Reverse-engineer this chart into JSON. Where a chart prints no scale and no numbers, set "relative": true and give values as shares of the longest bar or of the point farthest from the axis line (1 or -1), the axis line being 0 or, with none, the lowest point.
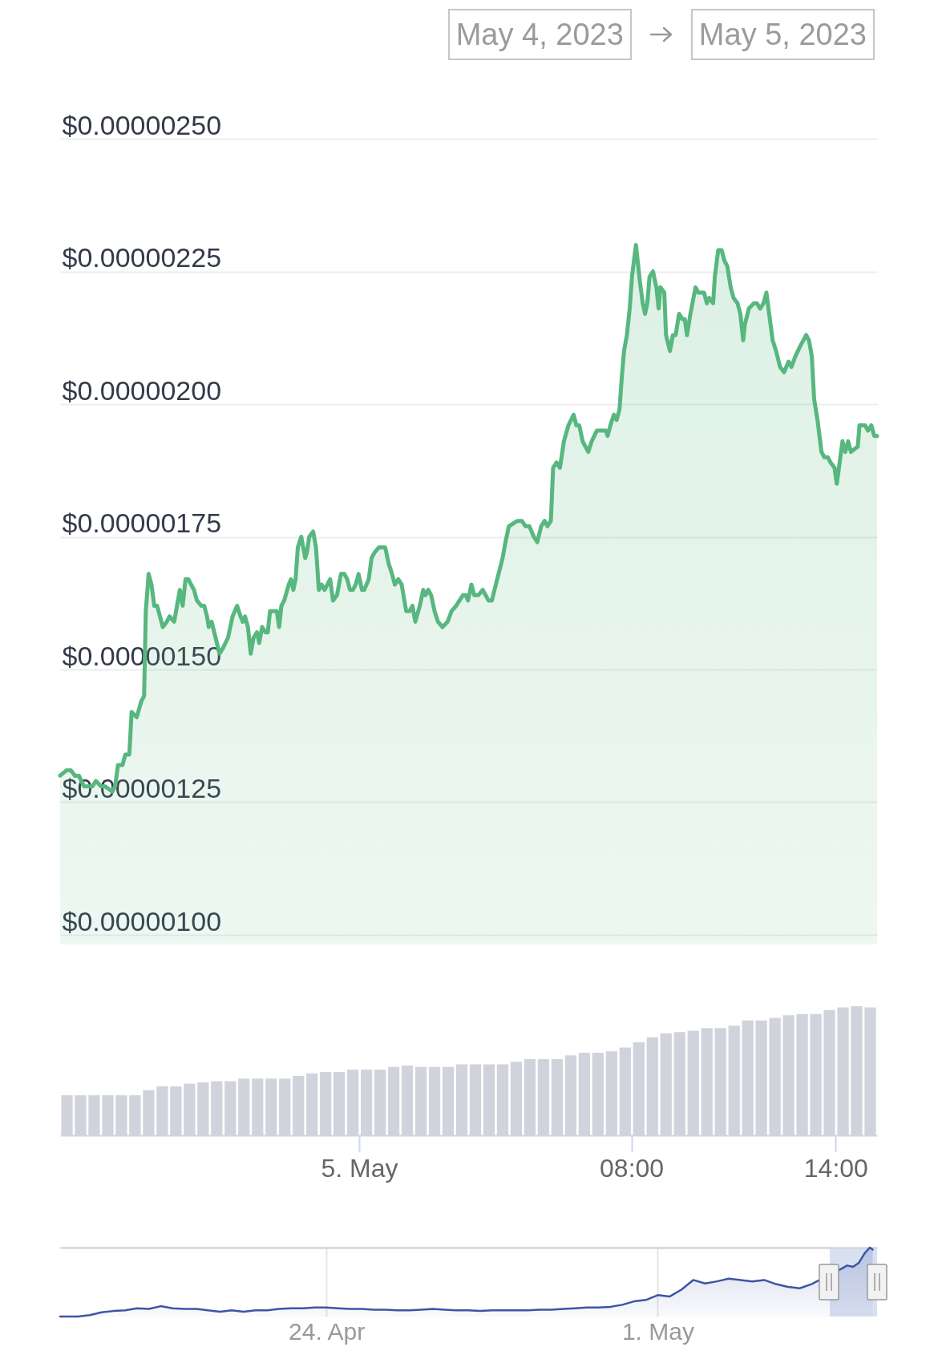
{
  "chart_data": [
    {
      "type": "area",
      "annotations": [
        "May 4, 2023",
        "May 5, 2023"
      ],
      "color": "#57b77f",
      "xlim": [
        "2023-05-04T15:13",
        "2023-05-05T15:13"
      ],
      "ylim": [
        1e-06,
        2.5e-06
      ],
      "yticks": [
        {
          "value": 1e-06,
          "label": "$0.00000100"
        },
        {
          "value": 1.25e-06,
          "label": "$0.00000125"
        },
        {
          "value": 1.5e-06,
          "label": "$0.00000150"
        },
        {
          "value": 1.75e-06,
          "label": "$0.00000175"
        },
        {
          "value": 2e-06,
          "label": "$0.00000200"
        },
        {
          "value": 2.25e-06,
          "label": "$0.00000225"
        },
        {
          "value": 2.5e-06,
          "label": "$0.00000250"
        }
      ],
      "grid": "y",
      "tick_labels": "y",
      "x": [
        "2023-05-04T15:13",
        "2023-05-04T15:24",
        "2023-05-04T15:32",
        "2023-05-04T15:39",
        "2023-05-04T15:46",
        "2023-05-04T15:55",
        "2023-05-04T16:02",
        "2023-05-04T16:10",
        "2023-05-04T16:16",
        "2023-05-04T16:25",
        "2023-05-04T16:32",
        "2023-05-04T16:45",
        "2023-05-04T16:50",
        "2023-05-04T16:55",
        "2023-05-04T17:03",
        "2023-05-04T17:08",
        "2023-05-04T17:15",
        "2023-05-04T17:19",
        "2023-05-04T17:28",
        "2023-05-04T17:36",
        "2023-05-04T17:41",
        "2023-05-04T17:44",
        "2023-05-04T17:49",
        "2023-05-04T17:54",
        "2023-05-04T17:59",
        "2023-05-04T18:04",
        "2023-05-04T18:14",
        "2023-05-04T18:21",
        "2023-05-04T18:26",
        "2023-05-04T18:34",
        "2023-05-04T18:44",
        "2023-05-04T18:49",
        "2023-05-04T18:54",
        "2023-05-04T18:59",
        "2023-05-04T19:04",
        "2023-05-04T19:09",
        "2023-05-04T19:14",
        "2023-05-04T19:22",
        "2023-05-04T19:27",
        "2023-05-04T19:32",
        "2023-05-04T19:35",
        "2023-05-04T19:40",
        "2023-05-04T19:47",
        "2023-05-04T19:54",
        "2023-05-04T20:00",
        "2023-05-04T20:09",
        "2023-05-04T20:17",
        "2023-05-04T20:25",
        "2023-05-04T20:31",
        "2023-05-04T20:35",
        "2023-05-04T20:39",
        "2023-05-04T20:44",
        "2023-05-04T20:49",
        "2023-05-04T20:54",
        "2023-05-04T21:00",
        "2023-05-04T21:04",
        "2023-05-04T21:09",
        "2023-05-04T21:15",
        "2023-05-04T21:19",
        "2023-05-04T21:23",
        "2023-05-04T21:32",
        "2023-05-04T21:35",
        "2023-05-04T21:39",
        "2023-05-04T21:43",
        "2023-05-04T21:48",
        "2023-05-04T21:56",
        "2023-05-04T22:00",
        "2023-05-04T22:04",
        "2023-05-04T22:08",
        "2023-05-04T22:12",
        "2023-05-04T22:18",
        "2023-05-04T22:25",
        "2023-05-04T22:28",
        "2023-05-04T22:32",
        "2023-05-04T22:39",
        "2023-05-04T22:44",
        "2023-05-04T22:49",
        "2023-05-04T22:54",
        "2023-05-04T22:59",
        "2023-05-04T23:04",
        "2023-05-04T23:09",
        "2023-05-04T23:14",
        "2023-05-04T23:21",
        "2023-05-04T23:28",
        "2023-05-04T23:34",
        "2023-05-04T23:39",
        "2023-05-04T23:44",
        "2023-05-04T23:49",
        "2023-05-04T23:54",
        "2023-05-04T23:59",
        "2023-05-05T00:05",
        "2023-05-05T00:09",
        "2023-05-05T00:17",
        "2023-05-05T00:22",
        "2023-05-05T00:27",
        "2023-05-05T00:35",
        "2023-05-05T00:42",
        "2023-05-05T00:46",
        "2023-05-05T00:52",
        "2023-05-05T00:58",
        "2023-05-05T01:03",
        "2023-05-05T01:09",
        "2023-05-05T01:15",
        "2023-05-05T01:23",
        "2023-05-05T01:29",
        "2023-05-05T01:34",
        "2023-05-05T01:39",
        "2023-05-05T01:47",
        "2023-05-05T01:53",
        "2023-05-05T01:57",
        "2023-05-05T02:02",
        "2023-05-05T02:07",
        "2023-05-05T02:13",
        "2023-05-05T02:19",
        "2023-05-05T02:27",
        "2023-05-05T02:36",
        "2023-05-05T02:43",
        "2023-05-05T02:51",
        "2023-05-05T02:57",
        "2023-05-05T03:03",
        "2023-05-05T03:08",
        "2023-05-05T03:12",
        "2023-05-05T03:18",
        "2023-05-05T03:23",
        "2023-05-05T03:30",
        "2023-05-05T03:38",
        "2023-05-05T03:48",
        "2023-05-05T03:54",
        "2023-05-05T04:01",
        "2023-05-05T04:13",
        "2023-05-05T04:18",
        "2023-05-05T04:24",
        "2023-05-05T04:39",
        "2023-05-05T04:47",
        "2023-05-05T04:53",
        "2023-05-05T05:00",
        "2023-05-05T05:08",
        "2023-05-05T05:14",
        "2023-05-05T05:21",
        "2023-05-05T05:27",
        "2023-05-05T05:32",
        "2023-05-05T05:38",
        "2023-05-05T05:42",
        "2023-05-05T05:48",
        "2023-05-05T05:54",
        "2023-05-05T06:01",
        "2023-05-05T06:09",
        "2023-05-05T06:18",
        "2023-05-05T06:23",
        "2023-05-05T06:28",
        "2023-05-05T06:34",
        "2023-05-05T06:39",
        "2023-05-05T06:44",
        "2023-05-05T06:50",
        "2023-05-05T06:59",
        "2023-05-05T07:04",
        "2023-05-05T07:11",
        "2023-05-05T07:15",
        "2023-05-05T07:18",
        "2023-05-05T07:23",
        "2023-05-05T07:29",
        "2023-05-05T07:34",
        "2023-05-05T07:39",
        "2023-05-05T07:43",
        "2023-05-05T07:47",
        "2023-05-05T07:52",
        "2023-05-05T07:57",
        "2023-05-05T08:01",
        "2023-05-05T08:08",
        "2023-05-05T08:15",
        "2023-05-05T08:20",
        "2023-05-05T08:24",
        "2023-05-05T08:28",
        "2023-05-05T08:32",
        "2023-05-05T08:38",
        "2023-05-05T08:44",
        "2023-05-05T08:48",
        "2023-05-05T08:51",
        "2023-05-05T08:58",
        "2023-05-05T09:01",
        "2023-05-05T09:08",
        "2023-05-05T09:13",
        "2023-05-05T09:18",
        "2023-05-05T09:24",
        "2023-05-05T09:30",
        "2023-05-05T09:34",
        "2023-05-05T09:38",
        "2023-05-05T09:44",
        "2023-05-05T09:53",
        "2023-05-05T09:58",
        "2023-05-05T10:03",
        "2023-05-05T10:08",
        "2023-05-05T10:13",
        "2023-05-05T10:17",
        "2023-05-05T10:24",
        "2023-05-05T10:27",
        "2023-05-05T10:33",
        "2023-05-05T10:39",
        "2023-05-05T10:44",
        "2023-05-05T10:49",
        "2023-05-05T10:55",
        "2023-05-05T11:00",
        "2023-05-05T11:07",
        "2023-05-05T11:12",
        "2023-05-05T11:17",
        "2023-05-05T11:20",
        "2023-05-05T11:27",
        "2023-05-05T11:36",
        "2023-05-05T11:41",
        "2023-05-05T11:47",
        "2023-05-05T11:53",
        "2023-05-05T11:58",
        "2023-05-05T12:04",
        "2023-05-05T12:09",
        "2023-05-05T12:15",
        "2023-05-05T12:22",
        "2023-05-05T12:29",
        "2023-05-05T12:37",
        "2023-05-05T12:42",
        "2023-05-05T12:49",
        "2023-05-05T12:58",
        "2023-05-05T13:03",
        "2023-05-05T13:08",
        "2023-05-05T13:13",
        "2023-05-05T13:18",
        "2023-05-05T13:22",
        "2023-05-05T13:28",
        "2023-05-05T13:35",
        "2023-05-05T13:40",
        "2023-05-05T13:46",
        "2023-05-05T13:51",
        "2023-05-05T13:58",
        "2023-05-05T14:02",
        "2023-05-05T14:07",
        "2023-05-05T14:12",
        "2023-05-05T14:17",
        "2023-05-05T14:22",
        "2023-05-05T14:27",
        "2023-05-05T14:39",
        "2023-05-05T14:42",
        "2023-05-05T14:48",
        "2023-05-05T14:52",
        "2023-05-05T14:57",
        "2023-05-05T15:03",
        "2023-05-05T15:08",
        "2023-05-05T15:13"
      ],
      "values": [
        1.3e-06,
        1.31e-06,
        1.31e-06,
        1.3e-06,
        1.3e-06,
        1.28e-06,
        1.28e-06,
        1.28e-06,
        1.29e-06,
        1.28e-06,
        1.28e-06,
        1.27e-06,
        1.28e-06,
        1.32e-06,
        1.32e-06,
        1.34e-06,
        1.34e-06,
        1.42e-06,
        1.41e-06,
        1.44e-06,
        1.45e-06,
        1.61e-06,
        1.68e-06,
        1.66e-06,
        1.62e-06,
        1.62e-06,
        1.58e-06,
        1.59e-06,
        1.6e-06,
        1.59e-06,
        1.65e-06,
        1.62e-06,
        1.67e-06,
        1.67e-06,
        1.66e-06,
        1.65e-06,
        1.63e-06,
        1.62e-06,
        1.62e-06,
        1.6e-06,
        1.58e-06,
        1.59e-06,
        1.56e-06,
        1.53e-06,
        1.54e-06,
        1.56e-06,
        1.6e-06,
        1.62e-06,
        1.6e-06,
        1.59e-06,
        1.6e-06,
        1.58e-06,
        1.53e-06,
        1.56e-06,
        1.57e-06,
        1.55e-06,
        1.58e-06,
        1.57e-06,
        1.57e-06,
        1.61e-06,
        1.61e-06,
        1.61e-06,
        1.58e-06,
        1.62e-06,
        1.63e-06,
        1.66e-06,
        1.67e-06,
        1.65e-06,
        1.67e-06,
        1.73e-06,
        1.75e-06,
        1.71e-06,
        1.72e-06,
        1.75e-06,
        1.76e-06,
        1.73e-06,
        1.65e-06,
        1.66e-06,
        1.65e-06,
        1.66e-06,
        1.67e-06,
        1.63e-06,
        1.64e-06,
        1.68e-06,
        1.68e-06,
        1.67e-06,
        1.65e-06,
        1.65e-06,
        1.66e-06,
        1.68e-06,
        1.65e-06,
        1.65e-06,
        1.67e-06,
        1.71e-06,
        1.72e-06,
        1.73e-06,
        1.73e-06,
        1.73e-06,
        1.7e-06,
        1.68e-06,
        1.66e-06,
        1.67e-06,
        1.66e-06,
        1.61e-06,
        1.61e-06,
        1.62e-06,
        1.59e-06,
        1.62e-06,
        1.65e-06,
        1.64e-06,
        1.65e-06,
        1.64e-06,
        1.61e-06,
        1.59e-06,
        1.58e-06,
        1.59e-06,
        1.61e-06,
        1.62e-06,
        1.63e-06,
        1.64e-06,
        1.64e-06,
        1.63e-06,
        1.66e-06,
        1.64e-06,
        1.64e-06,
        1.65e-06,
        1.63e-06,
        1.63e-06,
        1.66e-06,
        1.71e-06,
        1.74e-06,
        1.77e-06,
        1.78e-06,
        1.78e-06,
        1.77e-06,
        1.77e-06,
        1.75e-06,
        1.74e-06,
        1.77e-06,
        1.78e-06,
        1.77e-06,
        1.78e-06,
        1.88e-06,
        1.89e-06,
        1.88e-06,
        1.93e-06,
        1.96e-06,
        1.98e-06,
        1.96e-06,
        1.96e-06,
        1.93e-06,
        1.92e-06,
        1.91e-06,
        1.93e-06,
        1.95e-06,
        1.95e-06,
        1.95e-06,
        1.95e-06,
        1.94e-06,
        1.96e-06,
        1.98e-06,
        1.97e-06,
        1.99e-06,
        2.05e-06,
        2.1e-06,
        2.13e-06,
        2.18e-06,
        2.24e-06,
        2.3e-06,
        2.23e-06,
        2.19e-06,
        2.17e-06,
        2.19e-06,
        2.24e-06,
        2.25e-06,
        2.22e-06,
        2.18e-06,
        2.22e-06,
        2.21e-06,
        2.13e-06,
        2.1e-06,
        2.13e-06,
        2.13e-06,
        2.17e-06,
        2.16e-06,
        2.16e-06,
        2.13e-06,
        2.17e-06,
        2.22e-06,
        2.21e-06,
        2.21e-06,
        2.21e-06,
        2.19e-06,
        2.2e-06,
        2.19e-06,
        2.24e-06,
        2.29e-06,
        2.29e-06,
        2.27e-06,
        2.26e-06,
        2.22e-06,
        2.2e-06,
        2.19e-06,
        2.17e-06,
        2.12e-06,
        2.15e-06,
        2.18e-06,
        2.19e-06,
        2.19e-06,
        2.18e-06,
        2.19e-06,
        2.21e-06,
        2.16e-06,
        2.12e-06,
        2.1e-06,
        2.07e-06,
        2.06e-06,
        2.08e-06,
        2.07e-06,
        2.09e-06,
        2.11e-06,
        2.12e-06,
        2.13e-06,
        2.12e-06,
        2.09e-06,
        2.01e-06,
        1.97e-06,
        1.91e-06,
        1.9e-06,
        1.9e-06,
        1.89e-06,
        1.88e-06,
        1.85e-06,
        1.89e-06,
        1.93e-06,
        1.91e-06,
        1.93e-06,
        1.91e-06,
        1.92e-06,
        1.96e-06,
        1.96e-06,
        1.96e-06,
        1.95e-06,
        1.96e-06,
        1.94e-06,
        1.94e-06
      ]
    },
    {
      "type": "bar",
      "relative": true,
      "color": "#d1d3dc",
      "xlim": [
        "2023-05-04T15:13",
        "2023-05-05T15:13"
      ],
      "xticks": [
        {
          "value": "2023-05-05T00:00",
          "label": "5. May"
        },
        {
          "value": "2023-05-05T08:00",
          "label": "08:00"
        },
        {
          "value": "2023-05-05T14:00",
          "label": "14:00"
        }
      ],
      "tick_labels": "x",
      "x": [
        "2023-05-04T15:25",
        "2023-05-04T15:49",
        "2023-05-04T16:13",
        "2023-05-04T16:37",
        "2023-05-04T17:01",
        "2023-05-04T17:25",
        "2023-05-04T17:49",
        "2023-05-04T18:13",
        "2023-05-04T18:37",
        "2023-05-04T19:01",
        "2023-05-04T19:25",
        "2023-05-04T19:49",
        "2023-05-04T20:13",
        "2023-05-04T20:37",
        "2023-05-04T21:01",
        "2023-05-04T21:25",
        "2023-05-04T21:49",
        "2023-05-04T22:13",
        "2023-05-04T22:37",
        "2023-05-04T23:01",
        "2023-05-04T23:25",
        "2023-05-04T23:49",
        "2023-05-05T00:13",
        "2023-05-05T00:37",
        "2023-05-05T01:01",
        "2023-05-05T01:25",
        "2023-05-05T01:49",
        "2023-05-05T02:13",
        "2023-05-05T02:37",
        "2023-05-05T03:01",
        "2023-05-05T03:25",
        "2023-05-05T03:49",
        "2023-05-05T04:13",
        "2023-05-05T04:37",
        "2023-05-05T05:01",
        "2023-05-05T05:25",
        "2023-05-05T05:49",
        "2023-05-05T06:13",
        "2023-05-05T06:37",
        "2023-05-05T07:01",
        "2023-05-05T07:25",
        "2023-05-05T07:49",
        "2023-05-05T08:13",
        "2023-05-05T08:37",
        "2023-05-05T09:01",
        "2023-05-05T09:25",
        "2023-05-05T09:49",
        "2023-05-05T10:13",
        "2023-05-05T10:37",
        "2023-05-05T11:01",
        "2023-05-05T11:25",
        "2023-05-05T11:49",
        "2023-05-05T12:13",
        "2023-05-05T12:37",
        "2023-05-05T13:01",
        "2023-05-05T13:25",
        "2023-05-05T13:49",
        "2023-05-05T14:13",
        "2023-05-05T14:37",
        "2023-05-05T15:01"
      ],
      "values": [
        0.31,
        0.31,
        0.31,
        0.31,
        0.31,
        0.31,
        0.35,
        0.38,
        0.38,
        0.4,
        0.41,
        0.42,
        0.42,
        0.44,
        0.44,
        0.44,
        0.44,
        0.46,
        0.48,
        0.49,
        0.49,
        0.51,
        0.51,
        0.51,
        0.53,
        0.54,
        0.53,
        0.53,
        0.53,
        0.55,
        0.55,
        0.55,
        0.55,
        0.57,
        0.59,
        0.59,
        0.59,
        0.62,
        0.64,
        0.64,
        0.65,
        0.68,
        0.72,
        0.76,
        0.79,
        0.8,
        0.81,
        0.83,
        0.83,
        0.85,
        0.89,
        0.89,
        0.91,
        0.93,
        0.94,
        0.94,
        0.97,
        0.99,
        1,
        0.99
      ]
    },
    {
      "type": "area",
      "relative": true,
      "color": "#3c55a5",
      "xlim": [
        "2023-04-18T09:00",
        "2023-05-05T15:13"
      ],
      "xticks": [
        {
          "value": "2023-04-24T00:00",
          "label": "24. Apr"
        },
        {
          "value": "2023-05-01T00:00",
          "label": "1. May"
        }
      ],
      "grid": "x",
      "tick_labels": "x",
      "bands": [
        {
          "axis": "x",
          "from": "2023-05-04T15:13",
          "to": "2023-05-05T15:13",
          "color": "#ccd6eb"
        }
      ],
      "x": [
        "2023-04-18T09:00",
        "2023-04-18T12:00",
        "2023-04-18T18:00",
        "2023-04-19T00:00",
        "2023-04-19T06:00",
        "2023-04-19T12:00",
        "2023-04-19T18:00",
        "2023-04-20T00:00",
        "2023-04-20T06:00",
        "2023-04-20T12:00",
        "2023-04-20T18:00",
        "2023-04-21T00:00",
        "2023-04-21T06:00",
        "2023-04-21T12:00",
        "2023-04-21T18:00",
        "2023-04-22T00:00",
        "2023-04-22T06:00",
        "2023-04-22T12:00",
        "2023-04-22T18:00",
        "2023-04-23T00:00",
        "2023-04-23T06:00",
        "2023-04-23T12:00",
        "2023-04-23T18:00",
        "2023-04-24T00:00",
        "2023-04-24T06:00",
        "2023-04-24T12:00",
        "2023-04-24T18:00",
        "2023-04-25T00:00",
        "2023-04-25T06:00",
        "2023-04-25T12:00",
        "2023-04-25T18:00",
        "2023-04-26T00:00",
        "2023-04-26T06:00",
        "2023-04-26T12:00",
        "2023-04-26T18:00",
        "2023-04-27T00:00",
        "2023-04-27T06:00",
        "2023-04-27T12:00",
        "2023-04-27T18:00",
        "2023-04-28T00:00",
        "2023-04-28T06:00",
        "2023-04-28T12:00",
        "2023-04-28T18:00",
        "2023-04-29T00:00",
        "2023-04-29T06:00",
        "2023-04-29T12:00",
        "2023-04-29T18:00",
        "2023-04-30T00:00",
        "2023-04-30T06:00",
        "2023-04-30T12:00",
        "2023-04-30T18:00",
        "2023-05-01T00:00",
        "2023-05-01T06:00",
        "2023-05-01T12:00",
        "2023-05-01T18:00",
        "2023-05-02T00:00",
        "2023-05-02T06:00",
        "2023-05-02T12:00",
        "2023-05-02T18:00",
        "2023-05-03T00:00",
        "2023-05-03T06:00",
        "2023-05-03T12:00",
        "2023-05-03T18:00",
        "2023-05-04T00:00",
        "2023-05-04T06:00",
        "2023-05-04T12:00",
        "2023-05-04T18:00",
        "2023-05-04T21:00",
        "2023-05-05T00:00",
        "2023-05-05T03:00",
        "2023-05-05T06:00",
        "2023-05-05T09:00",
        "2023-05-05T11:30",
        "2023-05-05T13:00"
      ],
      "values": [
        0,
        0,
        0,
        0.02,
        0.06,
        0.08,
        0.09,
        0.12,
        0.11,
        0.15,
        0.12,
        0.11,
        0.11,
        0.09,
        0.07,
        0.09,
        0.07,
        0.09,
        0.09,
        0.11,
        0.12,
        0.12,
        0.13,
        0.13,
        0.12,
        0.11,
        0.11,
        0.1,
        0.1,
        0.09,
        0.09,
        0.1,
        0.11,
        0.1,
        0.09,
        0.09,
        0.08,
        0.09,
        0.09,
        0.09,
        0.09,
        0.1,
        0.1,
        0.11,
        0.12,
        0.13,
        0.13,
        0.14,
        0.17,
        0.22,
        0.24,
        0.31,
        0.29,
        0.39,
        0.53,
        0.48,
        0.51,
        0.55,
        0.53,
        0.51,
        0.53,
        0.47,
        0.43,
        0.41,
        0.47,
        null,
        null,
        0.69,
        0.74,
        0.72,
        0.78,
        0.92,
        1,
        0.97
      ]
    }
  ]
}
